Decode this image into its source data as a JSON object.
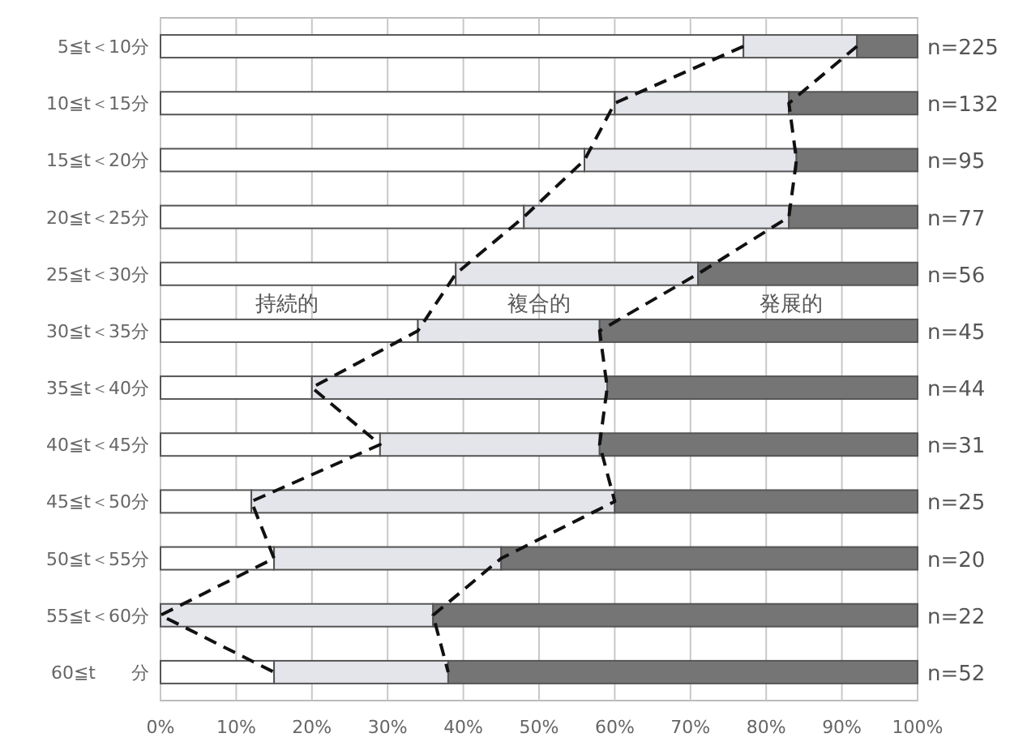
{
  "chart_data": {
    "type": "bar",
    "orientation": "horizontal",
    "stacked": true,
    "legend": false,
    "grid": "x",
    "categories": [
      "5≦t＜10分",
      "10≦t＜15分",
      "15≦t＜20分",
      "20≦t＜25分",
      "25≦t＜30分",
      "30≦t＜35分",
      "35≦t＜40分",
      "40≦t＜45分",
      "45≦t＜50分",
      "50≦t＜55分",
      "55≦t＜60分",
      "60≦t　　分"
    ],
    "xlim": [
      0,
      100
    ],
    "xticks": [
      {
        "value": 0,
        "label": "0%"
      },
      {
        "value": 10,
        "label": "10%"
      },
      {
        "value": 20,
        "label": "20%"
      },
      {
        "value": 30,
        "label": "30%"
      },
      {
        "value": 40,
        "label": "40%"
      },
      {
        "value": 50,
        "label": "50%"
      },
      {
        "value": 60,
        "label": "60%"
      },
      {
        "value": 70,
        "label": "70%"
      },
      {
        "value": 80,
        "label": "80%"
      },
      {
        "value": 90,
        "label": "90%"
      },
      {
        "value": 100,
        "label": "100%"
      }
    ],
    "series": [
      {
        "name": "持続的",
        "color": "#ffffff",
        "values": [
          77,
          60,
          56,
          48,
          39,
          34,
          20,
          29,
          12,
          15,
          0,
          15
        ]
      },
      {
        "name": "複合的",
        "color": "#e3e5ea",
        "values": [
          15,
          23,
          28,
          35,
          32,
          24,
          39,
          29,
          48,
          30,
          36,
          23
        ]
      },
      {
        "name": "発展的",
        "color": "#757575",
        "values": [
          8,
          17,
          16,
          17,
          29,
          42,
          41,
          42,
          40,
          55,
          64,
          62
        ]
      },
      {
        "type": "line",
        "line_style": "dashed",
        "color": "#111111",
        "values": [
          77,
          60,
          56,
          48,
          39,
          34,
          20,
          29,
          12,
          15,
          0,
          15
        ]
      },
      {
        "type": "line",
        "line_style": "dashed",
        "color": "#111111",
        "values": [
          92,
          83,
          84,
          83,
          71,
          58,
          59,
          58,
          60,
          45,
          36,
          38
        ]
      }
    ],
    "annotations": [
      "n=225",
      "n=132",
      "n=95",
      "n=77",
      "n=56",
      "n=45",
      "n=44",
      "n=31",
      "n=25",
      "n=20",
      "n=22",
      "n=52"
    ]
  }
}
